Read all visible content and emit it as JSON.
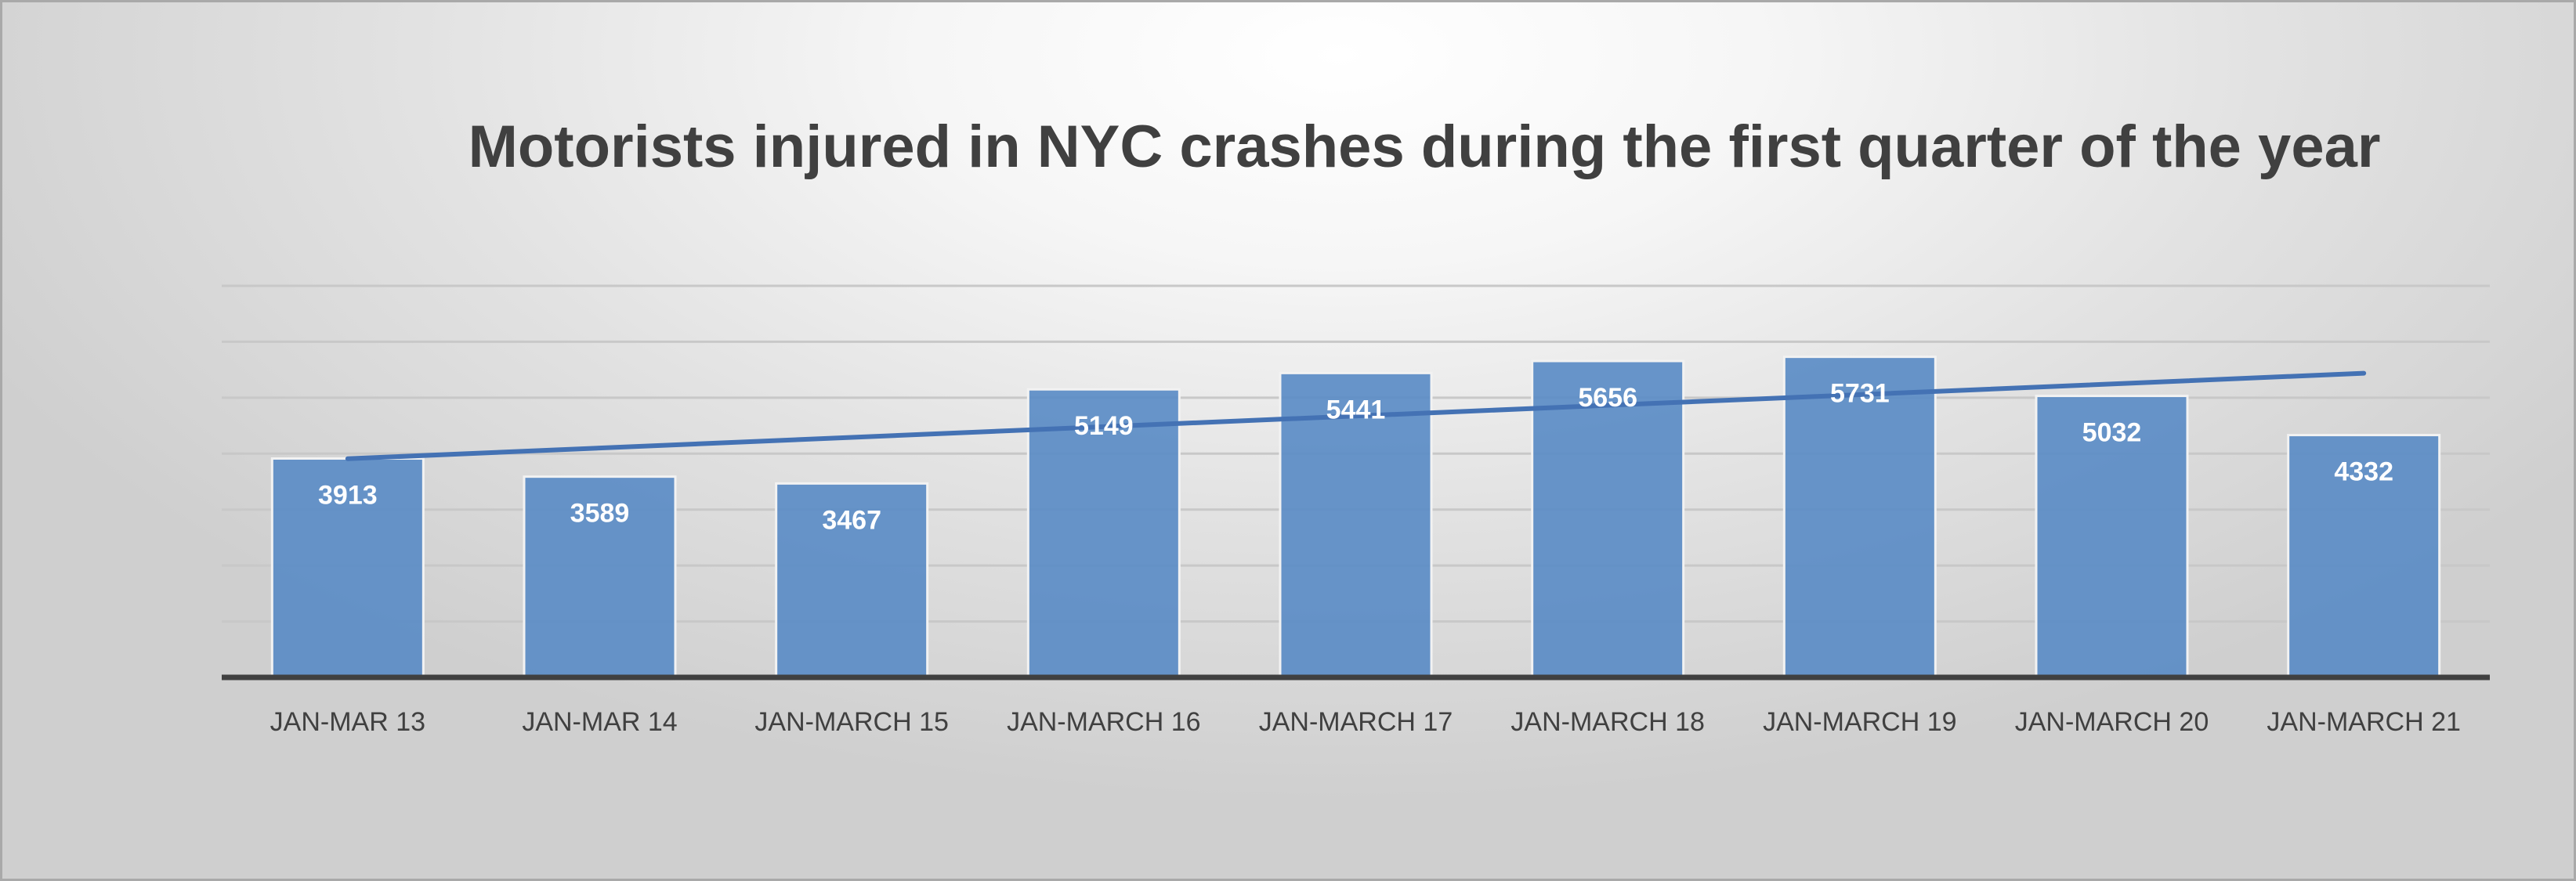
{
  "chart_data": {
    "type": "bar",
    "title": "Motorists injured in NYC crashes during the first quarter of the year",
    "categories": [
      "JAN-MAR 13",
      "JAN-MAR 14",
      "JAN-MARCH 15",
      "JAN-MARCH 16",
      "JAN-MARCH 17",
      "JAN-MARCH 18",
      "JAN-MARCH 19",
      "JAN-MARCH 20",
      "JAN-MARCH 21"
    ],
    "values": [
      3913,
      3589,
      3467,
      5149,
      5441,
      5656,
      5731,
      5032,
      4332
    ],
    "data_labels": [
      "3913",
      "3589",
      "3467",
      "5149",
      "5441",
      "5656",
      "5731",
      "5032",
      "4332"
    ],
    "trendline": {
      "type": "linear",
      "start": 3909,
      "end": 5437
    },
    "xlabel": "",
    "ylabel": "",
    "ylim": [
      0,
      7000
    ],
    "y_axis_labels_shown": false,
    "grid": true,
    "legend": "none"
  },
  "colors": {
    "bar": "#5b8cc6",
    "trendline": "#4472b4",
    "gridline": "#c8c8c8",
    "axis": "#404040",
    "title": "#404040"
  }
}
